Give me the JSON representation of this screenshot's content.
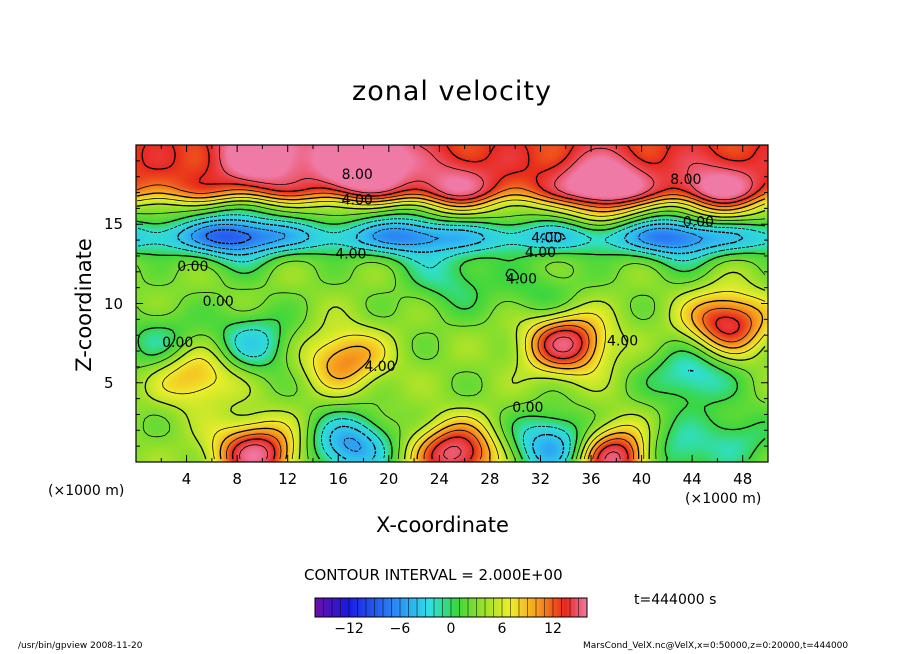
{
  "chart_data": {
    "type": "heatmap",
    "title": "zonal velocity",
    "xlabel": "X-coordinate",
    "ylabel": "Z-coordinate",
    "x_unit_left": "(×1000 m)",
    "x_unit_right": "(×1000 m)",
    "x_ticks": [
      "4",
      "8",
      "12",
      "16",
      "20",
      "24",
      "28",
      "32",
      "36",
      "40",
      "44",
      "48"
    ],
    "y_ticks": [
      "5",
      "10",
      "15"
    ],
    "xlim": [
      0,
      50
    ],
    "ylim": [
      0,
      20
    ],
    "contour_interval_text": "CONTOUR INTERVAL = 2.000E+00",
    "time_text": "t=444000 s",
    "colorbar": {
      "min": -16,
      "max": 16,
      "tick_labels": [
        "−12",
        "−6",
        "0",
        "6",
        "12"
      ],
      "tick_values": [
        -12,
        -6,
        0,
        6,
        12
      ]
    },
    "contour_labels": [
      {
        "text": "8.00",
        "x": 17.5,
        "y": 18.1
      },
      {
        "text": "4.00",
        "x": 17.5,
        "y": 16.5
      },
      {
        "text": "8.00",
        "x": 43.5,
        "y": 17.8
      },
      {
        "text": "0.00",
        "x": 44.5,
        "y": 15.1
      },
      {
        "text": "4.00",
        "x": 32.5,
        "y": 14.1
      },
      {
        "text": "4.00",
        "x": 32,
        "y": 13.2
      },
      {
        "text": "4.00",
        "x": 17,
        "y": 13.1
      },
      {
        "text": "4.00",
        "x": 30.5,
        "y": 11.5
      },
      {
        "text": "0.00",
        "x": 4.5,
        "y": 12.3
      },
      {
        "text": "0.00",
        "x": 6.5,
        "y": 10.1
      },
      {
        "text": "4.00",
        "x": 38.5,
        "y": 7.6
      },
      {
        "text": "0.00",
        "x": 31,
        "y": 3.4
      },
      {
        "text": "0.00",
        "x": 3.3,
        "y": 7.5
      },
      {
        "text": "4.00",
        "x": 19.3,
        "y": 6.0
      }
    ],
    "features": [
      {
        "x": 18,
        "y": 19,
        "value": 14
      },
      {
        "x": 10,
        "y": 19.5,
        "value": 10
      },
      {
        "x": 37,
        "y": 17.2,
        "value": 11
      },
      {
        "x": 46,
        "y": 16.8,
        "value": 8
      },
      {
        "x": 25,
        "y": 17,
        "value": 6
      },
      {
        "x": 34,
        "y": 7.5,
        "value": 13
      },
      {
        "x": 16.5,
        "y": 6.5,
        "value": 8
      },
      {
        "x": 4.7,
        "y": 5.5,
        "value": 7
      },
      {
        "x": 46.8,
        "y": 8.8,
        "value": 12
      },
      {
        "x": 9.3,
        "y": 7.5,
        "value": -6
      },
      {
        "x": 2,
        "y": 7.5,
        "value": -4
      },
      {
        "x": 44,
        "y": 5.5,
        "value": -6
      },
      {
        "x": 25,
        "y": 11.5,
        "value": -4
      },
      {
        "x": 32,
        "y": 10.5,
        "value": -3
      },
      {
        "x": 8,
        "y": 14.3,
        "value": -7
      },
      {
        "x": 22,
        "y": 14.5,
        "value": -5
      },
      {
        "x": 43,
        "y": 14.2,
        "value": -6
      },
      {
        "x": 9.5,
        "y": 0.5,
        "value": 14
      },
      {
        "x": 25.3,
        "y": 0.5,
        "value": 14
      },
      {
        "x": 17,
        "y": 1,
        "value": -10
      },
      {
        "x": 33,
        "y": 1,
        "value": -10
      },
      {
        "x": 38,
        "y": 0.3,
        "value": 15
      },
      {
        "x": 42,
        "y": 0.5,
        "value": -6
      },
      {
        "x": 47.5,
        "y": 1.5,
        "value": -4
      }
    ]
  },
  "footer": {
    "left": "/usr/bin/gpview  2008-11-20",
    "right": "MarsCond_VelX.nc@VelX,x=0:50000,z=0:20000,t=444000"
  }
}
